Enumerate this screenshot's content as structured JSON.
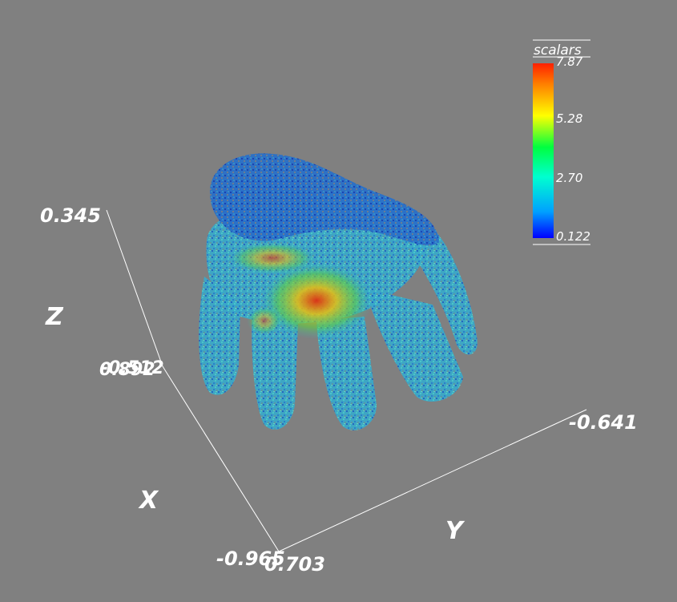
{
  "colorbar": {
    "title": "scalars",
    "ticks": [
      "7.87",
      "5.28",
      "2.70",
      "0.122"
    ],
    "stops": [
      "#0000ff",
      "#00a0ff",
      "#00ffd0",
      "#00ff40",
      "#ffff00",
      "#ff8000",
      "#ff2000"
    ]
  },
  "axes": {
    "z_title": "Z",
    "x_title": "X",
    "y_title": "Y",
    "z_max_label": "0.345",
    "z_min_overlap_a": "-0.512",
    "z_min_overlap_b": "0.892",
    "origin_x_label": "-0.965",
    "origin_y_label": "0.703",
    "y_end_label": "-0.641"
  },
  "colors": {
    "background": "#808080",
    "axis_line": "#ffffff"
  }
}
